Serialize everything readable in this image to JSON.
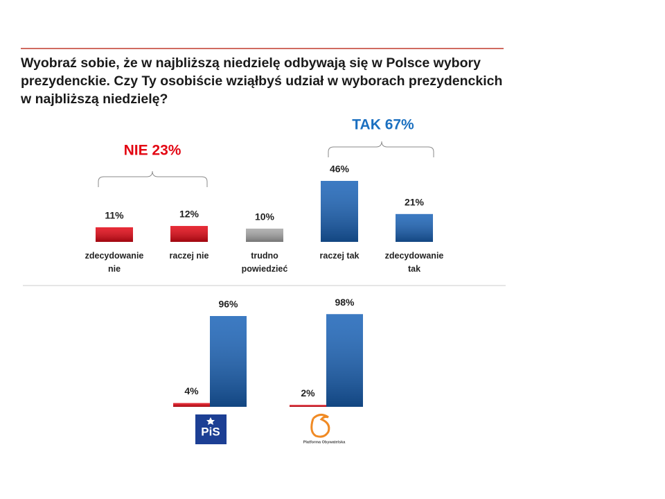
{
  "title_lines": [
    "Wyobraź sobie, że w najbliższą niedzielę odbywają się w Polsce wybory",
    "prezydenckie. Czy Ty osobiście wziąłbyś udział w wyborach prezydenckich",
    "w najbliższą niedzielę?"
  ],
  "chart_data": [
    {
      "type": "bar",
      "categories": [
        "zdecydowanie nie",
        "raczej nie",
        "trudno powiedzieć",
        "raczej tak",
        "zdecydowanie tak"
      ],
      "values": [
        11,
        12,
        10,
        46,
        21
      ],
      "value_labels": [
        "11%",
        "12%",
        "10%",
        "46%",
        "21%"
      ],
      "colors": [
        "#e30613",
        "#e30613",
        "#a6a6a6",
        "#1a63b8",
        "#1a63b8"
      ],
      "annotations": [
        {
          "text": "NIE 23%",
          "color": "#e30613"
        },
        {
          "text": "TAK 67%",
          "color": "#1a6fc0"
        }
      ]
    },
    {
      "type": "grouped_bar",
      "categories": [
        "PiS",
        "Platforma Obywatelska"
      ],
      "series": [
        {
          "color": "#e30613",
          "values": [
            4,
            2
          ],
          "value_labels": [
            "4%",
            "2%"
          ]
        },
        {
          "color": "#1a63b8",
          "values": [
            96,
            98
          ],
          "value_labels": [
            "96%",
            "98%"
          ]
        }
      ]
    }
  ]
}
